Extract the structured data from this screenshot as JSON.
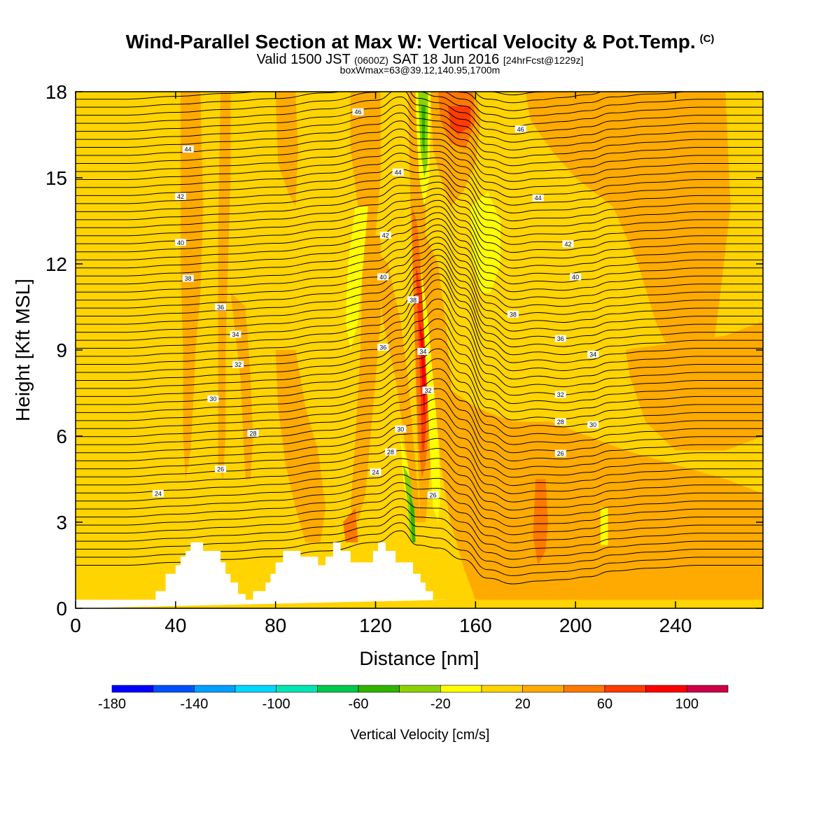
{
  "title": "Wind-Parallel Section at Max W: Vertical Velocity & Pot.Temp.",
  "copyright": "(C)",
  "valid_prefix": "Valid 1500 JST",
  "valid_utc": "(0600Z)",
  "valid_date": "SAT 18 Jun 2016",
  "forecast": "[24hrFcst@1229z]",
  "box_info": "boxWmax=63@39.12,140.95,1700m",
  "colors": {
    "bands": [
      "#0000ff",
      "#0050ff",
      "#00a0ff",
      "#00d8ff",
      "#00e6b4",
      "#00c84c",
      "#30b400",
      "#8cd200",
      "#ffff00",
      "#ffd400",
      "#ffaa00",
      "#ff7800",
      "#ff3c00",
      "#ff0000",
      "#cc0044",
      "#990066",
      "#660099"
    ],
    "w_m20_0": "#ffd400",
    "w_0_20": "#ffaa00",
    "w_20_40": "#ff7800",
    "w_40_60": "#ff3c00",
    "w_60_80": "#ff0000",
    "w_m40_m20": "#ffff00",
    "w_m60_m40": "#8cd200",
    "w_m80_m60": "#30b400",
    "terrain": "#ffffff",
    "isentrope": "#000000"
  },
  "chart_data": {
    "type": "heatmap",
    "xlabel": "Distance [nm]",
    "ylabel": "Height [Kft MSL]",
    "xlim": [
      0,
      275
    ],
    "ylim": [
      0,
      18
    ],
    "x_ticks": [
      0,
      40,
      80,
      120,
      160,
      200,
      240
    ],
    "y_ticks": [
      0,
      3,
      6,
      9,
      12,
      15,
      18
    ],
    "colorbar": {
      "label": "Vertical Velocity [cm/s]",
      "min": -180,
      "max": 120,
      "step": 20,
      "tick_labels": [
        "-180",
        "-140",
        "-100",
        "-60",
        "-20",
        "20",
        "60",
        "100"
      ]
    },
    "terrain": {
      "x": [
        0,
        32,
        32,
        36,
        36,
        40,
        40,
        42,
        42,
        44,
        44,
        46,
        46,
        51,
        51,
        58,
        58,
        60,
        60,
        62,
        62,
        65,
        65,
        68,
        68,
        71,
        71,
        76,
        76,
        78,
        78,
        80,
        80,
        83,
        83,
        85,
        85,
        90,
        90,
        97,
        97,
        100,
        100,
        103,
        103,
        106,
        106,
        110,
        110,
        116,
        116,
        119,
        119,
        121,
        121,
        124,
        124,
        128,
        128,
        135,
        135,
        138,
        138,
        140,
        140,
        143,
        143,
        145,
        145,
        150,
        150,
        155,
        155,
        275
      ],
      "y": [
        0.3,
        0.3,
        0.6,
        0.6,
        1.2,
        1.2,
        1.5,
        1.5,
        1.8,
        1.8,
        2.0,
        2.0,
        2.3,
        2.3,
        2.0,
        2.0,
        1.6,
        1.6,
        1.2,
        1.2,
        0.9,
        0.9,
        0.5,
        0.5,
        0.3,
        0.3,
        0.6,
        0.6,
        0.9,
        0.9,
        1.2,
        1.2,
        1.6,
        1.6,
        2.0,
        2.0,
        2.0,
        2.0,
        1.8,
        1.8,
        1.5,
        1.5,
        1.8,
        1.8,
        2.3,
        2.3,
        2.0,
        2.0,
        1.6,
        1.6,
        1.6,
        1.6,
        2.0,
        2.0,
        2.3,
        2.3,
        2.0,
        2.0,
        1.6,
        1.6,
        1.2,
        1.2,
        0.9,
        0.9,
        0.6,
        0.6,
        0.3,
        0.3,
        0.3,
        0.3
      ]
    },
    "isentrope_labels": [
      {
        "text": "46",
        "x": 113,
        "y": 17.3
      },
      {
        "text": "46",
        "x": 178,
        "y": 16.7
      },
      {
        "text": "44",
        "x": 45,
        "y": 16.0
      },
      {
        "text": "44",
        "x": 129,
        "y": 15.2
      },
      {
        "text": "44",
        "x": 185,
        "y": 14.3
      },
      {
        "text": "42",
        "x": 42,
        "y": 14.35
      },
      {
        "text": "42",
        "x": 124,
        "y": 13.0
      },
      {
        "text": "42",
        "x": 197,
        "y": 12.7
      },
      {
        "text": "40",
        "x": 42,
        "y": 12.75
      },
      {
        "text": "40",
        "x": 123,
        "y": 11.55
      },
      {
        "text": "40",
        "x": 200,
        "y": 11.55
      },
      {
        "text": "38",
        "x": 45,
        "y": 11.5
      },
      {
        "text": "38",
        "x": 135,
        "y": 10.75
      },
      {
        "text": "38",
        "x": 175,
        "y": 10.25
      },
      {
        "text": "36",
        "x": 58,
        "y": 10.5
      },
      {
        "text": "36",
        "x": 123,
        "y": 9.1
      },
      {
        "text": "36",
        "x": 194,
        "y": 9.4
      },
      {
        "text": "34",
        "x": 64,
        "y": 9.55
      },
      {
        "text": "34",
        "x": 139,
        "y": 8.95
      },
      {
        "text": "34",
        "x": 207,
        "y": 8.85
      },
      {
        "text": "32",
        "x": 65,
        "y": 8.5
      },
      {
        "text": "32",
        "x": 141,
        "y": 7.6
      },
      {
        "text": "32",
        "x": 194,
        "y": 7.45
      },
      {
        "text": "30",
        "x": 55,
        "y": 7.3
      },
      {
        "text": "30",
        "x": 130,
        "y": 6.25
      },
      {
        "text": "30",
        "x": 207,
        "y": 6.4
      },
      {
        "text": "28",
        "x": 71,
        "y": 6.1
      },
      {
        "text": "28",
        "x": 126,
        "y": 5.45
      },
      {
        "text": "28",
        "x": 194,
        "y": 6.5
      },
      {
        "text": "26",
        "x": 58,
        "y": 4.85
      },
      {
        "text": "26",
        "x": 143,
        "y": 3.95
      },
      {
        "text": "26",
        "x": 194,
        "y": 5.4
      },
      {
        "text": "24",
        "x": 33,
        "y": 4.0
      },
      {
        "text": "24",
        "x": 120,
        "y": 4.75
      }
    ]
  }
}
